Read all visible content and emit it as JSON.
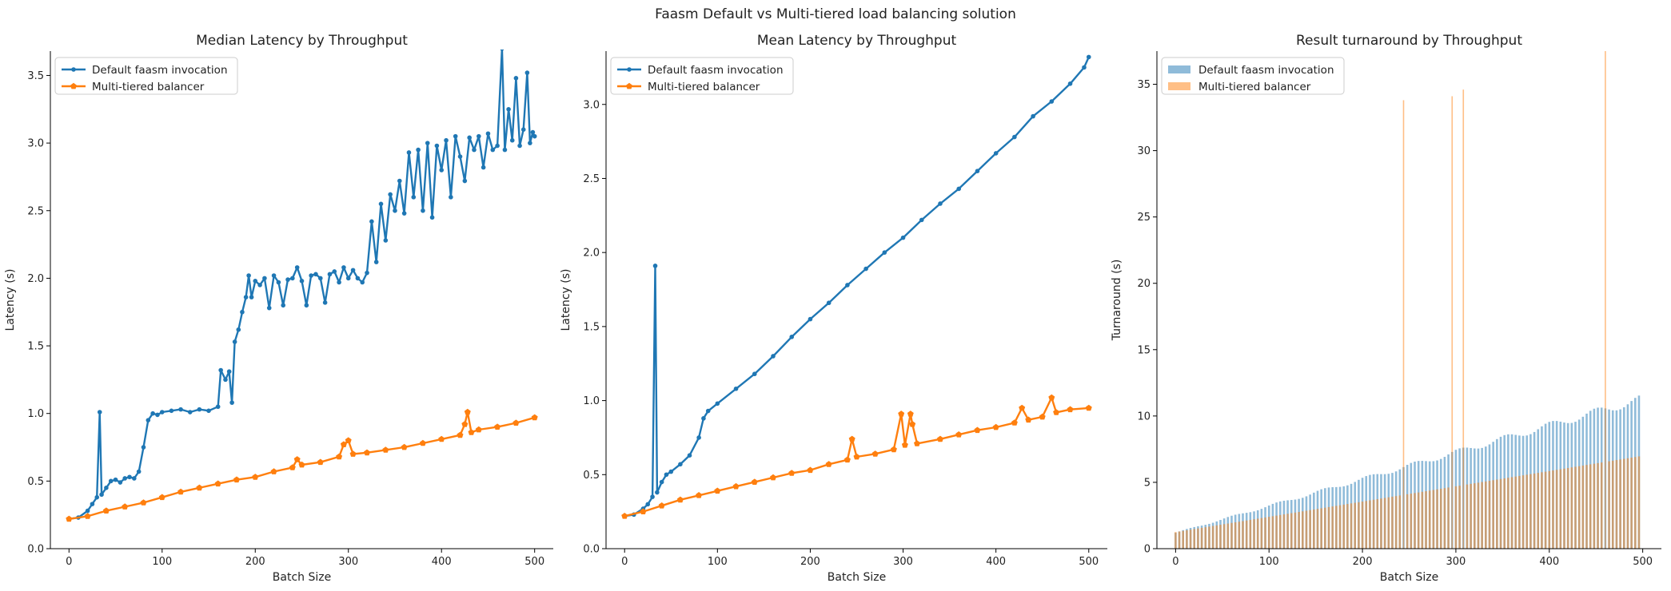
{
  "figure": {
    "suptitle": "Faasm Default vs Multi-tiered load balancing solution"
  },
  "colors": {
    "default": "#1f77b4",
    "balancer": "#ff7f0e"
  },
  "chart_data": [
    {
      "type": "line",
      "title": "Median Latency by Throughput",
      "xlabel": "Batch Size",
      "ylabel": "Latency (s)",
      "xlim": [
        -20,
        520
      ],
      "ylim": [
        0,
        3.68
      ],
      "xticks": [
        0,
        100,
        200,
        300,
        400,
        500
      ],
      "yticks": [
        0.0,
        0.5,
        1.0,
        1.5,
        2.0,
        2.5,
        3.0,
        3.5
      ],
      "legend": "top-left",
      "grid": false,
      "series": [
        {
          "name": "Default faasm invocation",
          "color": "#1f77b4",
          "marker": "dot",
          "points": [
            [
              0,
              0.22
            ],
            [
              10,
              0.23
            ],
            [
              20,
              0.28
            ],
            [
              25,
              0.33
            ],
            [
              30,
              0.38
            ],
            [
              33,
              1.01
            ],
            [
              35,
              0.4
            ],
            [
              40,
              0.45
            ],
            [
              45,
              0.5
            ],
            [
              50,
              0.51
            ],
            [
              55,
              0.49
            ],
            [
              60,
              0.52
            ],
            [
              65,
              0.53
            ],
            [
              70,
              0.52
            ],
            [
              75,
              0.57
            ],
            [
              80,
              0.75
            ],
            [
              85,
              0.95
            ],
            [
              90,
              1.0
            ],
            [
              95,
              0.99
            ],
            [
              100,
              1.01
            ],
            [
              110,
              1.02
            ],
            [
              120,
              1.03
            ],
            [
              130,
              1.01
            ],
            [
              140,
              1.03
            ],
            [
              150,
              1.02
            ],
            [
              160,
              1.05
            ],
            [
              163,
              1.32
            ],
            [
              168,
              1.25
            ],
            [
              172,
              1.31
            ],
            [
              175,
              1.08
            ],
            [
              178,
              1.53
            ],
            [
              182,
              1.62
            ],
            [
              186,
              1.75
            ],
            [
              190,
              1.86
            ],
            [
              193,
              2.02
            ],
            [
              196,
              1.86
            ],
            [
              200,
              1.98
            ],
            [
              205,
              1.95
            ],
            [
              210,
              2.0
            ],
            [
              215,
              1.78
            ],
            [
              220,
              2.02
            ],
            [
              225,
              1.97
            ],
            [
              230,
              1.8
            ],
            [
              235,
              1.99
            ],
            [
              240,
              2.0
            ],
            [
              245,
              2.08
            ],
            [
              250,
              1.98
            ],
            [
              255,
              1.8
            ],
            [
              260,
              2.02
            ],
            [
              265,
              2.03
            ],
            [
              270,
              2.0
            ],
            [
              275,
              1.82
            ],
            [
              280,
              2.03
            ],
            [
              285,
              2.05
            ],
            [
              290,
              1.97
            ],
            [
              295,
              2.08
            ],
            [
              300,
              2.0
            ],
            [
              305,
              2.06
            ],
            [
              310,
              2.0
            ],
            [
              315,
              1.97
            ],
            [
              320,
              2.04
            ],
            [
              325,
              2.42
            ],
            [
              330,
              2.12
            ],
            [
              335,
              2.55
            ],
            [
              340,
              2.28
            ],
            [
              345,
              2.62
            ],
            [
              350,
              2.5
            ],
            [
              355,
              2.72
            ],
            [
              360,
              2.48
            ],
            [
              365,
              2.93
            ],
            [
              370,
              2.6
            ],
            [
              375,
              2.95
            ],
            [
              380,
              2.5
            ],
            [
              385,
              3.0
            ],
            [
              390,
              2.45
            ],
            [
              395,
              2.98
            ],
            [
              400,
              2.8
            ],
            [
              405,
              3.02
            ],
            [
              410,
              2.6
            ],
            [
              415,
              3.05
            ],
            [
              420,
              2.9
            ],
            [
              425,
              2.72
            ],
            [
              430,
              3.04
            ],
            [
              435,
              2.95
            ],
            [
              440,
              3.05
            ],
            [
              445,
              2.82
            ],
            [
              450,
              3.07
            ],
            [
              455,
              2.95
            ],
            [
              460,
              2.98
            ],
            [
              465,
              3.7
            ],
            [
              468,
              2.95
            ],
            [
              472,
              3.25
            ],
            [
              476,
              3.02
            ],
            [
              480,
              3.48
            ],
            [
              484,
              2.98
            ],
            [
              488,
              3.1
            ],
            [
              492,
              3.52
            ],
            [
              495,
              3.0
            ],
            [
              498,
              3.08
            ],
            [
              500,
              3.05
            ]
          ]
        },
        {
          "name": "Multi-tiered balancer",
          "color": "#ff7f0e",
          "marker": "pentagon",
          "points": [
            [
              0,
              0.22
            ],
            [
              20,
              0.24
            ],
            [
              40,
              0.28
            ],
            [
              60,
              0.31
            ],
            [
              80,
              0.34
            ],
            [
              100,
              0.38
            ],
            [
              120,
              0.42
            ],
            [
              140,
              0.45
            ],
            [
              160,
              0.48
            ],
            [
              180,
              0.51
            ],
            [
              200,
              0.53
            ],
            [
              220,
              0.57
            ],
            [
              240,
              0.6
            ],
            [
              245,
              0.66
            ],
            [
              250,
              0.62
            ],
            [
              270,
              0.64
            ],
            [
              290,
              0.68
            ],
            [
              295,
              0.77
            ],
            [
              300,
              0.8
            ],
            [
              305,
              0.7
            ],
            [
              320,
              0.71
            ],
            [
              340,
              0.73
            ],
            [
              360,
              0.75
            ],
            [
              380,
              0.78
            ],
            [
              400,
              0.81
            ],
            [
              420,
              0.84
            ],
            [
              425,
              0.92
            ],
            [
              428,
              1.01
            ],
            [
              432,
              0.86
            ],
            [
              440,
              0.88
            ],
            [
              460,
              0.9
            ],
            [
              480,
              0.93
            ],
            [
              500,
              0.97
            ]
          ]
        }
      ]
    },
    {
      "type": "line",
      "title": "Mean Latency by Throughput",
      "xlabel": "Batch Size",
      "ylabel": "Latency (s)",
      "xlim": [
        -20,
        520
      ],
      "ylim": [
        0,
        3.36
      ],
      "xticks": [
        0,
        100,
        200,
        300,
        400,
        500
      ],
      "yticks": [
        0.0,
        0.5,
        1.0,
        1.5,
        2.0,
        2.5,
        3.0
      ],
      "legend": "top-left",
      "grid": false,
      "series": [
        {
          "name": "Default faasm invocation",
          "color": "#1f77b4",
          "marker": "dot",
          "points": [
            [
              0,
              0.22
            ],
            [
              10,
              0.23
            ],
            [
              20,
              0.27
            ],
            [
              25,
              0.3
            ],
            [
              30,
              0.35
            ],
            [
              33,
              1.91
            ],
            [
              35,
              0.38
            ],
            [
              40,
              0.45
            ],
            [
              45,
              0.5
            ],
            [
              50,
              0.52
            ],
            [
              60,
              0.57
            ],
            [
              70,
              0.63
            ],
            [
              80,
              0.75
            ],
            [
              85,
              0.88
            ],
            [
              90,
              0.93
            ],
            [
              100,
              0.98
            ],
            [
              120,
              1.08
            ],
            [
              140,
              1.18
            ],
            [
              160,
              1.3
            ],
            [
              180,
              1.43
            ],
            [
              200,
              1.55
            ],
            [
              220,
              1.66
            ],
            [
              240,
              1.78
            ],
            [
              260,
              1.89
            ],
            [
              280,
              2.0
            ],
            [
              300,
              2.1
            ],
            [
              320,
              2.22
            ],
            [
              340,
              2.33
            ],
            [
              360,
              2.43
            ],
            [
              380,
              2.55
            ],
            [
              400,
              2.67
            ],
            [
              420,
              2.78
            ],
            [
              440,
              2.92
            ],
            [
              460,
              3.02
            ],
            [
              480,
              3.14
            ],
            [
              495,
              3.25
            ],
            [
              500,
              3.32
            ]
          ]
        },
        {
          "name": "Multi-tiered balancer",
          "color": "#ff7f0e",
          "marker": "pentagon",
          "points": [
            [
              0,
              0.22
            ],
            [
              20,
              0.25
            ],
            [
              40,
              0.29
            ],
            [
              60,
              0.33
            ],
            [
              80,
              0.36
            ],
            [
              100,
              0.39
            ],
            [
              120,
              0.42
            ],
            [
              140,
              0.45
            ],
            [
              160,
              0.48
            ],
            [
              180,
              0.51
            ],
            [
              200,
              0.53
            ],
            [
              220,
              0.57
            ],
            [
              240,
              0.6
            ],
            [
              245,
              0.74
            ],
            [
              250,
              0.62
            ],
            [
              270,
              0.64
            ],
            [
              290,
              0.67
            ],
            [
              298,
              0.91
            ],
            [
              302,
              0.7
            ],
            [
              308,
              0.91
            ],
            [
              310,
              0.84
            ],
            [
              315,
              0.71
            ],
            [
              340,
              0.74
            ],
            [
              360,
              0.77
            ],
            [
              380,
              0.8
            ],
            [
              400,
              0.82
            ],
            [
              420,
              0.85
            ],
            [
              428,
              0.95
            ],
            [
              435,
              0.87
            ],
            [
              450,
              0.89
            ],
            [
              460,
              1.02
            ],
            [
              465,
              0.92
            ],
            [
              480,
              0.94
            ],
            [
              500,
              0.95
            ]
          ]
        }
      ]
    },
    {
      "type": "bar",
      "title": "Result turnaround by Throughput",
      "xlabel": "Batch Size",
      "ylabel": "Turnaround (s)",
      "xlim": [
        -20,
        520
      ],
      "ylim": [
        0,
        37.5
      ],
      "xticks": [
        0,
        100,
        200,
        300,
        400,
        500
      ],
      "yticks": [
        0,
        5,
        10,
        15,
        20,
        25,
        30,
        35
      ],
      "legend": "top-left",
      "grid": false,
      "batch_sizes": {
        "start": 0,
        "end": 496,
        "step": 4
      },
      "series": [
        {
          "name": "Default faasm invocation",
          "color": "#1f77b4",
          "alpha": 0.5,
          "linear_trend": {
            "at_0": 1.2,
            "at_500": 11.3
          }
        },
        {
          "name": "Multi-tiered balancer",
          "color": "#ff7f0e",
          "alpha": 0.5,
          "linear_trend": {
            "at_0": 1.25,
            "at_500": 7.0
          },
          "spikes": [
            [
              244,
              33.8
            ],
            [
              296,
              34.1
            ],
            [
              308,
              34.6
            ],
            [
              460,
              37.5
            ]
          ]
        }
      ]
    }
  ]
}
